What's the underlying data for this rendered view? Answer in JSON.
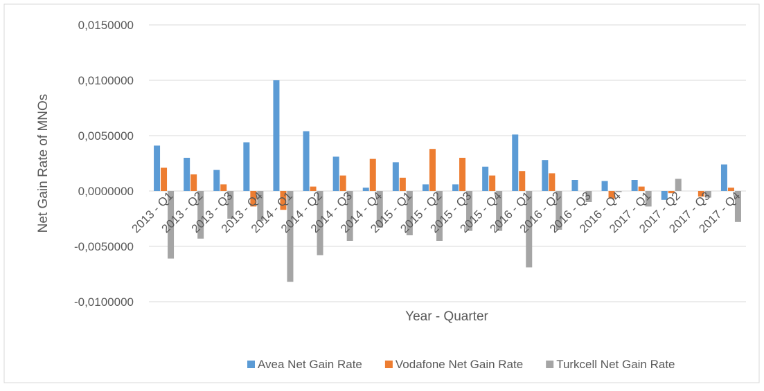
{
  "chart_data": {
    "type": "bar",
    "y_label": "Net Gain Rate of MNOs",
    "x_label": "Year - Quarter",
    "categories": [
      "2013 - Q1",
      "2013 - Q2",
      "2013 - Q3",
      "2013 - Q4",
      "2014 - Q1",
      "2014 - Q2",
      "2014 - Q3",
      "2014 - Q4",
      "2015 - Q1",
      "2015 - Q2",
      "2015 - Q3",
      "2015 - Q4",
      "2016 - Q1",
      "2016 - Q2",
      "2016 - Q3",
      "2016 - Q4",
      "2017 - Q1",
      "2017 - Q2",
      "2017 - Q3",
      "2017 - Q4"
    ],
    "series": [
      {
        "name": "Avea Net Gain Rate",
        "color": "#5b9bd5",
        "values": [
          0.0041,
          0.003,
          0.0019,
          0.0044,
          0.01,
          0.0054,
          0.0031,
          0.0003,
          0.0026,
          0.0006,
          0.0006,
          0.0022,
          0.0051,
          0.0028,
          0.001,
          0.0009,
          0.001,
          -0.0008,
          0,
          0.0024
        ]
      },
      {
        "name": "Vodafone Net Gain Rate",
        "color": "#ed7d31",
        "values": [
          0.0021,
          0.0015,
          0.0006,
          -0.0014,
          -0.0017,
          0.0004,
          0.0014,
          0.0029,
          0.0012,
          0.0038,
          0.003,
          0.0014,
          0.0018,
          0.0016,
          0,
          -0.0007,
          0.0004,
          -0.0002,
          -0.0005,
          0.0003
        ]
      },
      {
        "name": "Turkcell Net Gain Rate",
        "color": "#a5a5a5",
        "values": [
          -0.0061,
          -0.0043,
          -0.0025,
          -0.0027,
          -0.0082,
          -0.0058,
          -0.0045,
          -0.0033,
          -0.004,
          -0.0045,
          -0.0036,
          -0.0036,
          -0.0069,
          -0.0035,
          -0.001,
          -0.0001,
          -0.0014,
          0.0011,
          -0.0006,
          -0.0028
        ]
      }
    ],
    "ylim": [
      -0.01,
      0.015
    ],
    "yticks": [
      {
        "value": -0.01,
        "label": "-0,0100000"
      },
      {
        "value": -0.005,
        "label": "-0,0050000"
      },
      {
        "value": 0,
        "label": "0,0000000"
      },
      {
        "value": 0.005,
        "label": "0,0050000"
      },
      {
        "value": 0.01,
        "label": "0,0100000"
      },
      {
        "value": 0.015,
        "label": "0,0150000"
      }
    ],
    "grid": true,
    "legend": "bottom"
  }
}
